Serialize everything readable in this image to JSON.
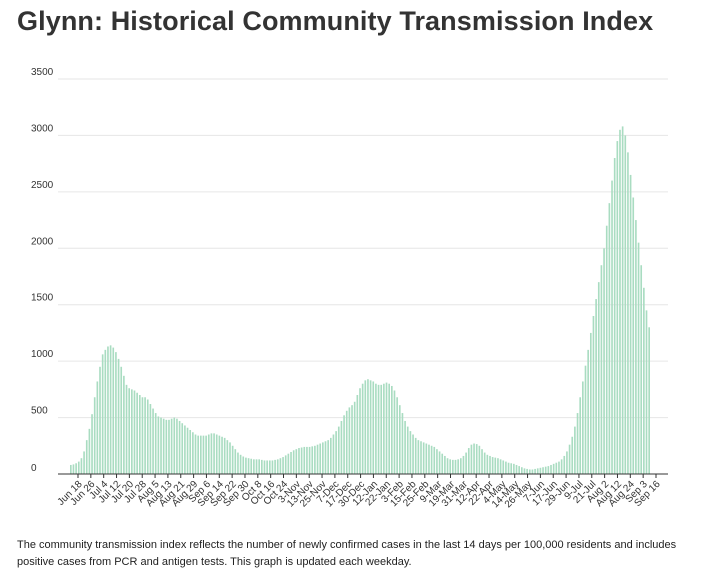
{
  "title": "Glynn: Historical Community Transmission Index",
  "caption": "The community transmission index reflects the number of newly confirmed cases in the last 14 days per 100,000 residents and includes positive cases from PCR and antigen tests. This graph is updated each weekday.",
  "colors": {
    "bar": "#a9dcc1",
    "grid": "#e6e6e6",
    "axis": "#333333",
    "text": "#333333"
  },
  "chart_data": {
    "type": "bar",
    "title": "Glynn: Historical Community Transmission Index",
    "xlabel": "",
    "ylabel": "",
    "ylim": [
      0,
      3500
    ],
    "yticks": [
      0,
      500,
      1000,
      1500,
      2000,
      2500,
      3000,
      3500
    ],
    "grid": true,
    "tick_labels": [
      "Jun 18",
      "Jun 26",
      "Jul 4",
      "Jul 12",
      "Jul 20",
      "Jul 28",
      "Aug 5",
      "Aug 13",
      "Aug 21",
      "Aug 29",
      "Sep 6",
      "Sep 14",
      "Sep 22",
      "Sep 30",
      "Oct 8",
      "Oct 16",
      "Oct 24",
      "3-Nov",
      "13-Nov",
      "25-Nov",
      "7-Dec",
      "17-Dec",
      "30-Dec",
      "12-Jan",
      "22-Jan",
      "3-Feb",
      "15-Feb",
      "25-Feb",
      "9-Mar",
      "19-Mar",
      "31-Mar",
      "12-Apr",
      "22-Apr",
      "4-May",
      "14-May",
      "26-May",
      "7-Jun",
      "17-Jun",
      "29-Jun",
      "9-Jul",
      "21-Jul",
      "Aug 2",
      "Aug 12",
      "Aug 24",
      "Sep 3",
      "Sep 16"
    ],
    "values": [
      80,
      85,
      95,
      110,
      140,
      200,
      300,
      400,
      530,
      680,
      820,
      950,
      1060,
      1100,
      1130,
      1140,
      1120,
      1080,
      1020,
      950,
      870,
      790,
      760,
      750,
      740,
      720,
      700,
      680,
      680,
      660,
      620,
      580,
      540,
      510,
      500,
      490,
      480,
      480,
      490,
      500,
      490,
      470,
      450,
      430,
      410,
      390,
      370,
      350,
      340,
      340,
      340,
      340,
      350,
      360,
      360,
      350,
      340,
      330,
      320,
      300,
      280,
      250,
      220,
      190,
      170,
      155,
      145,
      140,
      135,
      130,
      130,
      130,
      125,
      120,
      120,
      120,
      120,
      125,
      130,
      140,
      150,
      165,
      180,
      195,
      210,
      220,
      230,
      235,
      240,
      240,
      240,
      245,
      250,
      260,
      270,
      280,
      290,
      300,
      320,
      350,
      380,
      420,
      470,
      520,
      560,
      590,
      610,
      640,
      700,
      760,
      800,
      830,
      840,
      830,
      820,
      800,
      790,
      790,
      800,
      810,
      800,
      780,
      740,
      680,
      610,
      540,
      470,
      420,
      380,
      350,
      320,
      300,
      290,
      280,
      270,
      260,
      250,
      240,
      220,
      200,
      180,
      160,
      140,
      130,
      125,
      125,
      130,
      140,
      160,
      190,
      230,
      260,
      270,
      265,
      250,
      220,
      190,
      170,
      160,
      150,
      145,
      140,
      130,
      120,
      110,
      100,
      95,
      90,
      80,
      70,
      60,
      50,
      45,
      40,
      40,
      45,
      50,
      55,
      60,
      65,
      70,
      80,
      90,
      100,
      110,
      130,
      160,
      200,
      260,
      330,
      420,
      540,
      680,
      820,
      960,
      1100,
      1250,
      1400,
      1550,
      1700,
      1850,
      2000,
      2200,
      2400,
      2600,
      2800,
      2950,
      3050,
      3080,
      3000,
      2850,
      2650,
      2450,
      2250,
      2050,
      1850,
      1650,
      1450,
      1300
    ]
  }
}
